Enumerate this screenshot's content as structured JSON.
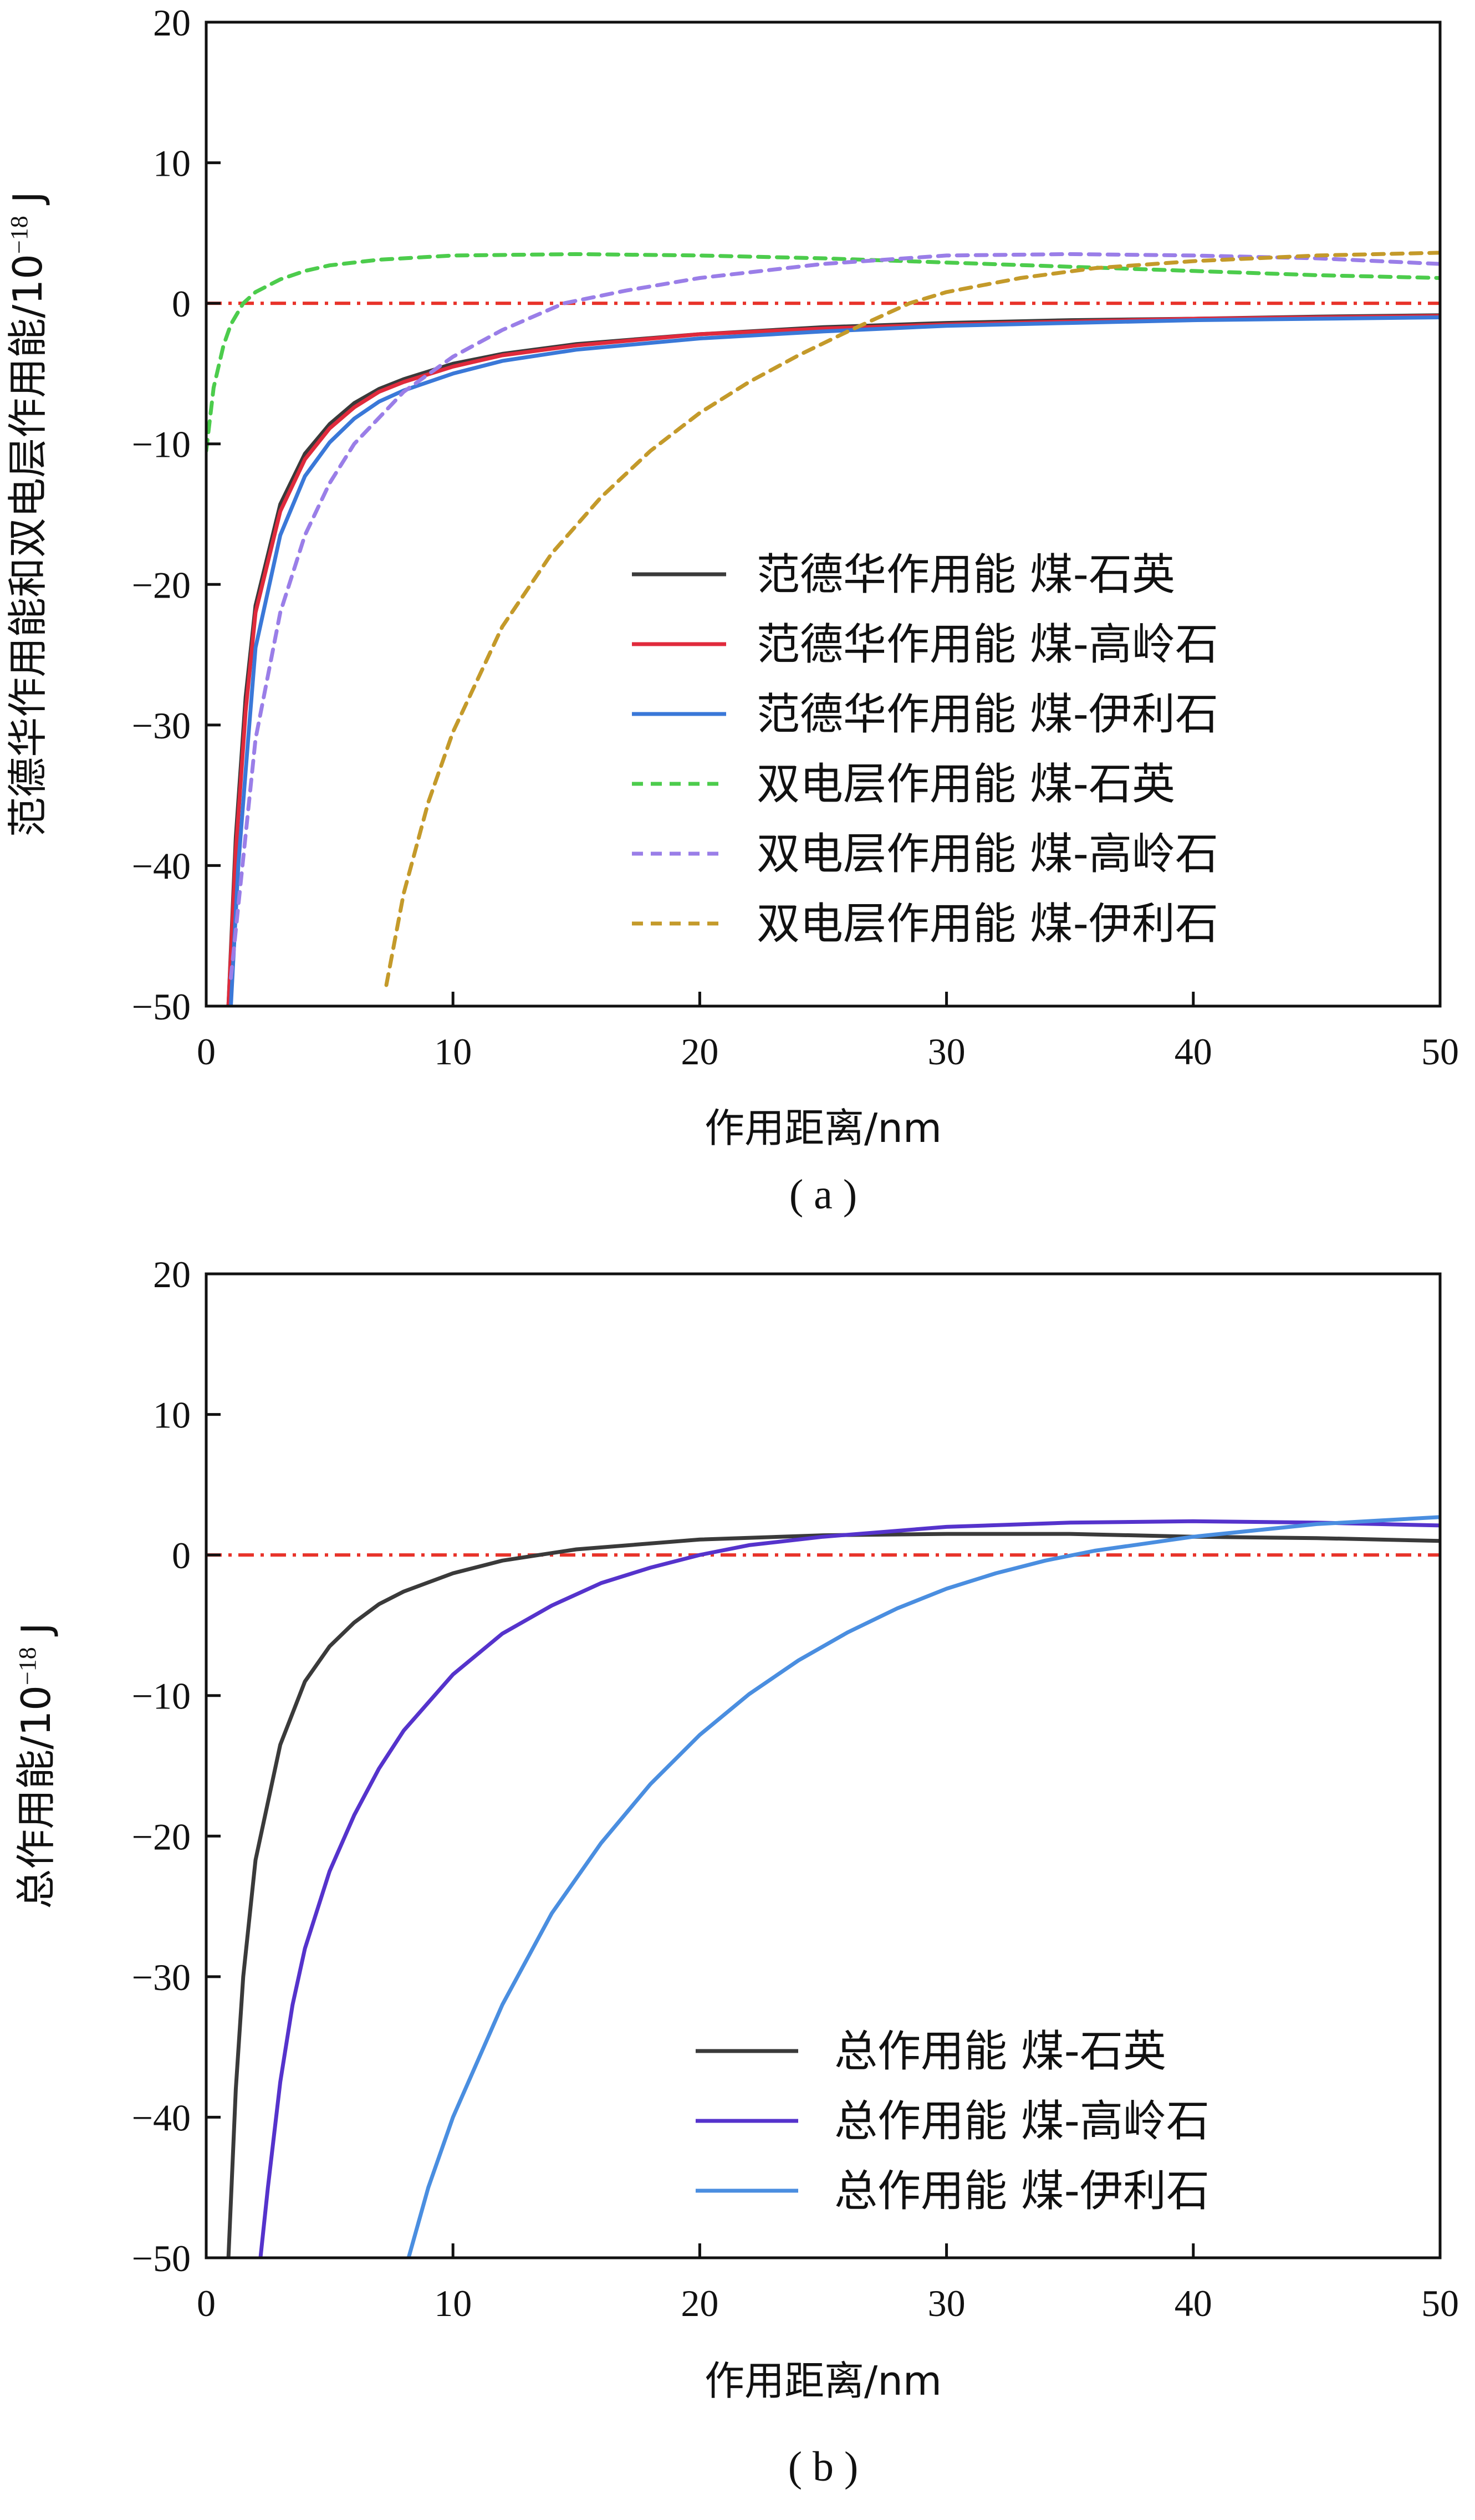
{
  "chart_data": [
    {
      "type": "line",
      "panel": "a",
      "caption": "( a )",
      "xlabel": "作用距离/nm",
      "ylabel": "范德华作用能和双电层作用能/10",
      "ylabel_exp": "−18",
      "ylabel_unit": " J",
      "xlim": [
        0,
        50
      ],
      "ylim": [
        -50,
        20
      ],
      "xticks": [
        0,
        10,
        20,
        30,
        40,
        50
      ],
      "yticks": [
        -50,
        -40,
        -30,
        -20,
        -10,
        0,
        10,
        20
      ],
      "legend_position": "lower-right",
      "reference_line": {
        "y": 0,
        "color": "#e8332a",
        "style": "dashdot"
      },
      "series": [
        {
          "name": "范德华作用能 煤-石英",
          "color": "#3a3a3a",
          "style": "solid",
          "x": [
            0.9,
            1.2,
            1.6,
            2,
            3,
            4,
            5,
            6,
            7,
            8,
            10,
            12,
            15,
            20,
            25,
            30,
            35,
            40,
            45,
            50
          ],
          "y": [
            -50,
            -38,
            -28,
            -21.5,
            -14.3,
            -10.7,
            -8.6,
            -7.1,
            -6.1,
            -5.4,
            -4.3,
            -3.6,
            -2.9,
            -2.2,
            -1.7,
            -1.4,
            -1.2,
            -1.1,
            -0.95,
            -0.85
          ]
        },
        {
          "name": "范德华作用能 煤-高岭石",
          "color": "#e02a3c",
          "style": "solid",
          "x": [
            0.9,
            1.2,
            1.6,
            2,
            3,
            4,
            5,
            6,
            7,
            8,
            10,
            12,
            15,
            20,
            25,
            30,
            35,
            40,
            45,
            50
          ],
          "y": [
            -50,
            -39,
            -29,
            -22,
            -14.8,
            -11.1,
            -8.9,
            -7.4,
            -6.3,
            -5.6,
            -4.5,
            -3.7,
            -3.0,
            -2.2,
            -1.8,
            -1.5,
            -1.3,
            -1.1,
            -1.0,
            -0.9
          ]
        },
        {
          "name": "范德华作用能 煤-伊利石",
          "color": "#3a78d8",
          "style": "solid",
          "x": [
            1.0,
            1.3,
            1.7,
            2,
            3,
            4,
            5,
            6,
            7,
            8,
            10,
            12,
            15,
            20,
            25,
            30,
            35,
            40,
            45,
            50
          ],
          "y": [
            -50,
            -40,
            -31,
            -24.5,
            -16.5,
            -12.3,
            -9.9,
            -8.2,
            -7.0,
            -6.2,
            -5.0,
            -4.1,
            -3.3,
            -2.5,
            -2.0,
            -1.6,
            -1.4,
            -1.2,
            -1.1,
            -1.0
          ]
        },
        {
          "name": "双电层作用能 煤-石英",
          "color": "#4ccc4c",
          "style": "dashed",
          "x": [
            0,
            0.3,
            0.7,
            1,
            1.5,
            2,
            3,
            4,
            5,
            7,
            10,
            15,
            20,
            25,
            30,
            35,
            40,
            45,
            50
          ],
          "y": [
            -10.5,
            -6,
            -3,
            -1.5,
            0,
            0.8,
            1.7,
            2.3,
            2.7,
            3.1,
            3.4,
            3.5,
            3.4,
            3.2,
            2.9,
            2.6,
            2.3,
            2.0,
            1.8
          ]
        },
        {
          "name": "双电层作用能 煤-高岭石",
          "color": "#9a7ee8",
          "style": "dashed",
          "x": [
            1,
            2,
            3,
            4,
            5,
            6,
            8,
            10,
            12,
            14.5,
            17,
            20,
            25,
            30,
            35,
            40,
            45,
            50
          ],
          "y": [
            -48,
            -31,
            -22,
            -16.5,
            -12.8,
            -10,
            -6.3,
            -3.8,
            -1.9,
            0,
            0.9,
            1.8,
            2.8,
            3.4,
            3.5,
            3.4,
            3.2,
            2.8
          ]
        },
        {
          "name": "双电层作用能 煤-伊利石",
          "color": "#c49a2a",
          "style": "dashed",
          "x": [
            7.3,
            8,
            9,
            10,
            12,
            14,
            16,
            18,
            20,
            22,
            24,
            26,
            28.5,
            30,
            33,
            36,
            40,
            45,
            50
          ],
          "y": [
            -48.5,
            -42,
            -35.5,
            -30.5,
            -23,
            -17.8,
            -13.8,
            -10.5,
            -7.8,
            -5.6,
            -3.7,
            -2,
            0,
            0.8,
            1.8,
            2.5,
            3.0,
            3.4,
            3.6
          ]
        }
      ]
    },
    {
      "type": "line",
      "panel": "b",
      "caption": "( b )",
      "xlabel": "作用距离/nm",
      "ylabel": "总作用能/10",
      "ylabel_exp": "−18",
      "ylabel_unit": " J",
      "xlim": [
        0,
        50
      ],
      "ylim": [
        -50,
        20
      ],
      "xticks": [
        0,
        10,
        20,
        30,
        40,
        50
      ],
      "yticks": [
        -50,
        -40,
        -30,
        -20,
        -10,
        0,
        10,
        20
      ],
      "legend_position": "lower-right",
      "reference_line": {
        "y": 0,
        "color": "#e8332a",
        "style": "dashdot"
      },
      "series": [
        {
          "name": "总作用能 煤-石英",
          "color": "#3a3a3a",
          "style": "solid",
          "x": [
            0.9,
            1.2,
            1.5,
            2,
            3,
            4,
            5,
            6,
            7,
            8,
            10,
            12,
            13.5,
            15,
            20,
            25,
            30,
            35,
            40,
            45,
            50
          ],
          "y": [
            -50,
            -38,
            -30,
            -21.7,
            -13.5,
            -9,
            -6.5,
            -4.8,
            -3.5,
            -2.6,
            -1.3,
            -0.4,
            0,
            0.4,
            1.1,
            1.4,
            1.5,
            1.5,
            1.3,
            1.2,
            1.0
          ]
        },
        {
          "name": "总作用能 煤-高岭石",
          "color": "#5533cc",
          "style": "solid",
          "x": [
            2.2,
            2.5,
            3,
            3.5,
            4,
            5,
            6,
            7,
            8,
            10,
            12,
            14,
            16,
            18,
            20,
            22,
            25,
            30,
            35,
            40,
            45,
            50
          ],
          "y": [
            -50,
            -45,
            -37.5,
            -32,
            -28,
            -22.5,
            -18.5,
            -15.2,
            -12.5,
            -8.5,
            -5.6,
            -3.6,
            -2,
            -0.9,
            0,
            0.7,
            1.3,
            2.0,
            2.3,
            2.4,
            2.3,
            2.1
          ]
        },
        {
          "name": "总作用能 煤-伊利石",
          "color": "#4a8ee0",
          "style": "solid",
          "x": [
            8.2,
            9,
            10,
            12,
            14,
            16,
            18,
            20,
            22,
            24,
            26,
            28,
            30,
            32,
            34,
            36,
            40,
            45,
            50
          ],
          "y": [
            -50,
            -45,
            -40,
            -32,
            -25.5,
            -20.5,
            -16.3,
            -12.8,
            -9.9,
            -7.5,
            -5.5,
            -3.8,
            -2.4,
            -1.3,
            -0.4,
            0.3,
            1.3,
            2.2,
            2.7
          ]
        }
      ]
    }
  ]
}
